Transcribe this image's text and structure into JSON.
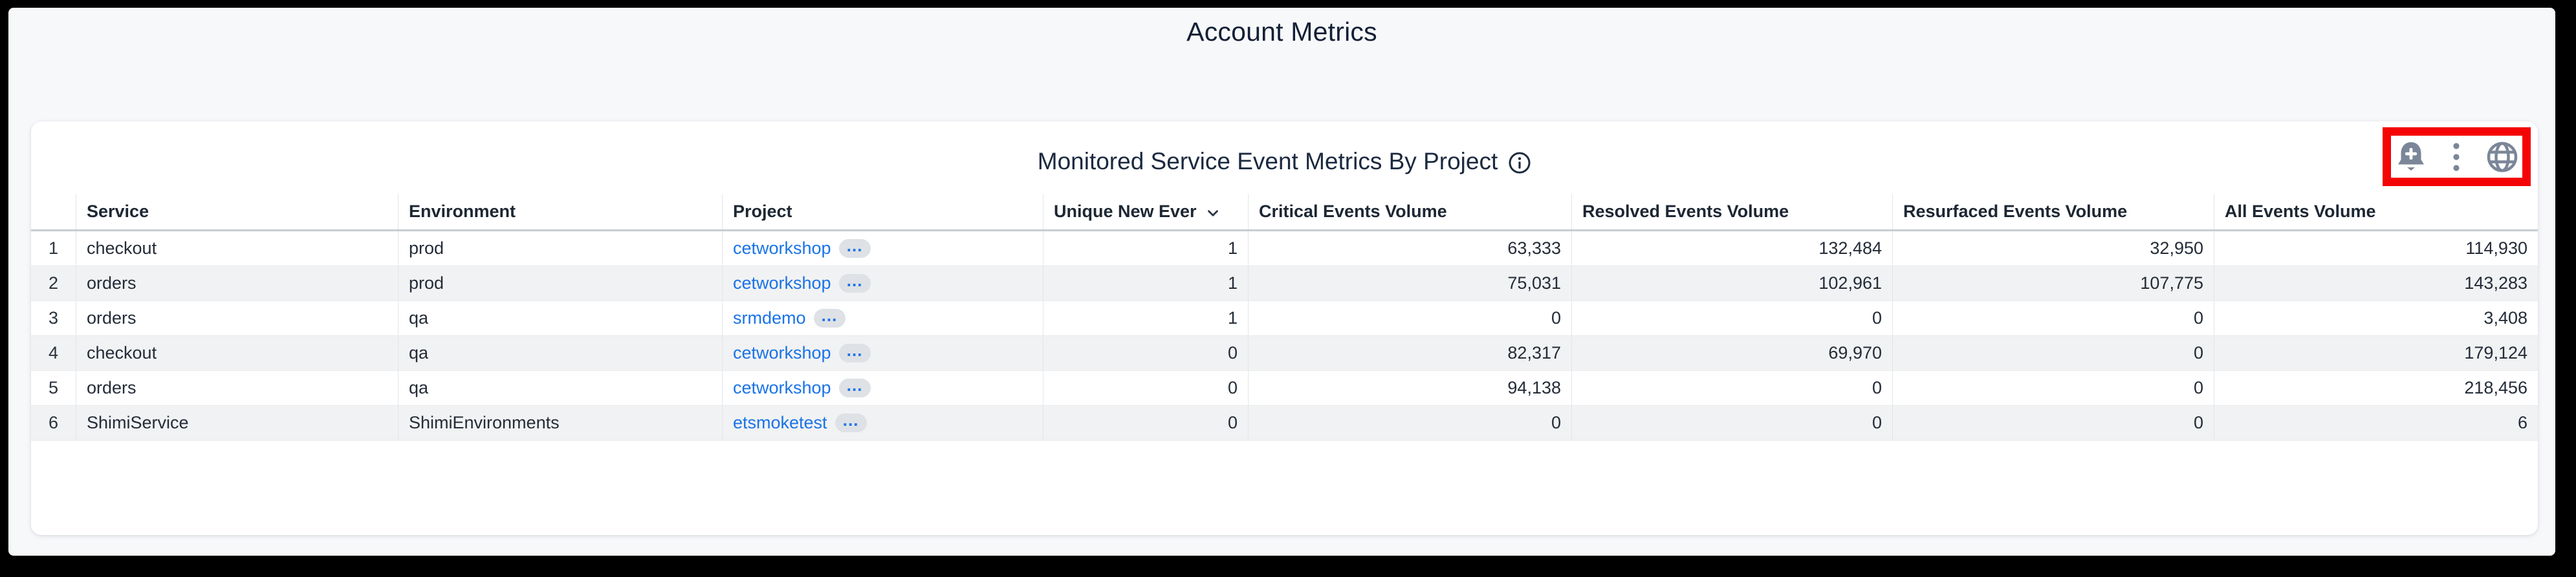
{
  "page": {
    "title": "Account Metrics"
  },
  "card": {
    "title": "Monitored Service Event Metrics By Project",
    "info_icon": "info-circle-icon",
    "toolbar_icons": [
      "add-alert-bell",
      "more-options-kebab",
      "globe"
    ],
    "annotation": "red-highlight-box"
  },
  "table": {
    "columns": [
      {
        "label": "",
        "type": "rownum"
      },
      {
        "label": "Service",
        "type": "text"
      },
      {
        "label": "Environment",
        "type": "text"
      },
      {
        "label": "Project",
        "type": "link"
      },
      {
        "label": "Unique New Ever",
        "type": "number",
        "sorted": "desc"
      },
      {
        "label": "Critical Events Volume",
        "type": "number"
      },
      {
        "label": "Resolved Events Volume",
        "type": "number"
      },
      {
        "label": "Resurfaced Events Volume",
        "type": "number"
      },
      {
        "label": "All Events Volume",
        "type": "number"
      }
    ],
    "rows": [
      [
        "1",
        "checkout",
        "prod",
        "cetworkshop",
        "1",
        "63,333",
        "132,484",
        "32,950",
        "114,930"
      ],
      [
        "2",
        "orders",
        "prod",
        "cetworkshop",
        "1",
        "75,031",
        "102,961",
        "107,775",
        "143,283"
      ],
      [
        "3",
        "orders",
        "qa",
        "srmdemo",
        "1",
        "0",
        "0",
        "0",
        "3,408"
      ],
      [
        "4",
        "checkout",
        "qa",
        "cetworkshop",
        "0",
        "82,317",
        "69,970",
        "0",
        "179,124"
      ],
      [
        "5",
        "orders",
        "qa",
        "cetworkshop",
        "0",
        "94,138",
        "0",
        "0",
        "218,456"
      ],
      [
        "6",
        "ShimiService",
        "ShimiEnvironments",
        "etsmoketest",
        "0",
        "0",
        "0",
        "0",
        "6"
      ]
    ],
    "ellipsis_badge": "…"
  },
  "colors": {
    "annotation_red": "#f40404",
    "link_blue": "#1a73e8",
    "icon_slate": "#7b8698",
    "title_navy": "#1b2940",
    "stripe_gray": "#f1f2f3",
    "page_background": "#f7f8fa"
  }
}
